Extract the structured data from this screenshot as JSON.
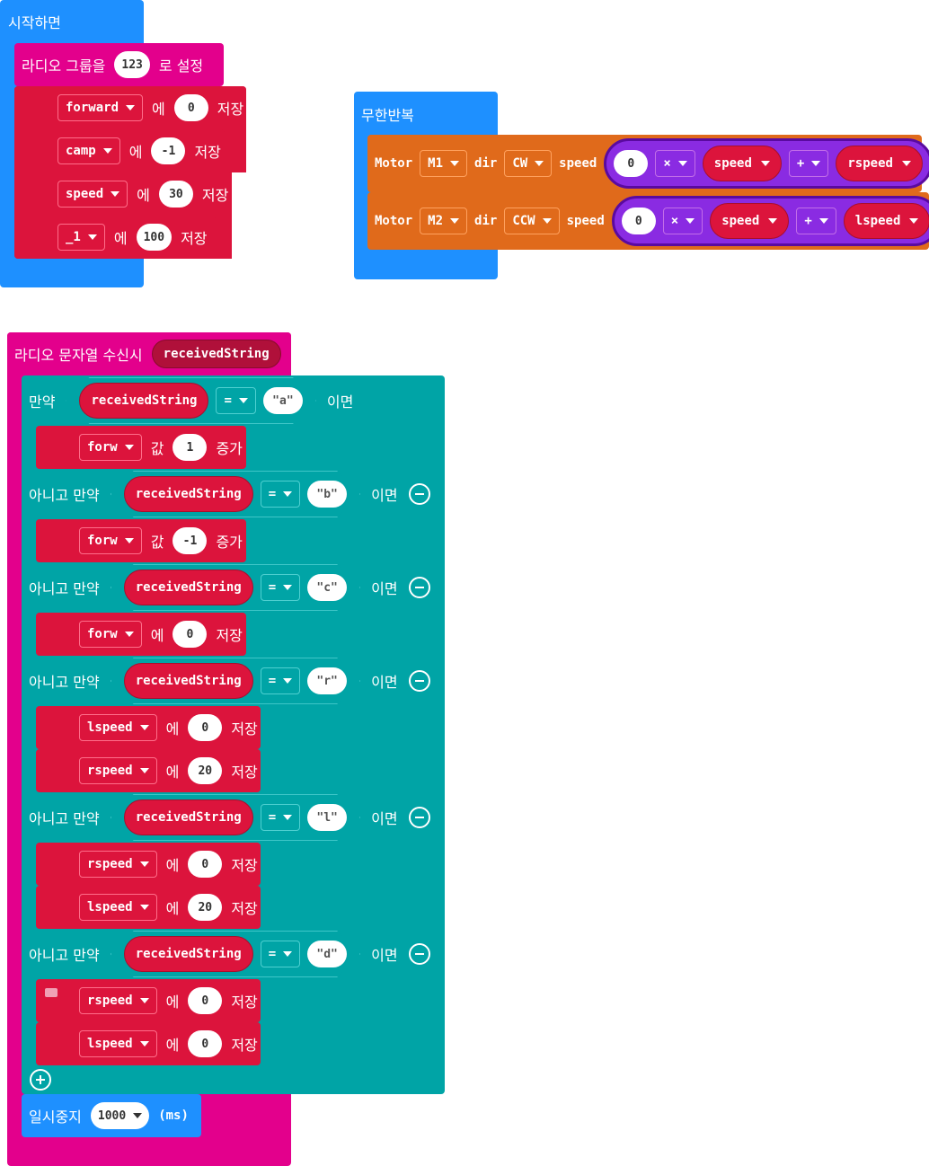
{
  "on_start": {
    "title": "시작하면",
    "radio": {
      "label": "라디오 그룹을",
      "value": "123",
      "suffix": "로 설정"
    },
    "sets": [
      {
        "var": "forward",
        "to": "에",
        "value": "0",
        "save": "저장"
      },
      {
        "var": "camp",
        "to": "에",
        "value": "-1",
        "save": "저장"
      },
      {
        "var": "speed",
        "to": "에",
        "value": "30",
        "save": "저장"
      },
      {
        "var": "_1",
        "to": "에",
        "value": "100",
        "save": "저장"
      }
    ]
  },
  "forever": {
    "title": "무한반복",
    "motors": [
      {
        "motor": "Motor",
        "id": "M1",
        "dir": "dir",
        "dir_value": "CW",
        "speed": "speed",
        "num": "0",
        "op1": "×",
        "var1": "speed",
        "op2": "+",
        "var2": "rspeed"
      },
      {
        "motor": "Motor",
        "id": "M2",
        "dir": "dir",
        "dir_value": "CCW",
        "speed": "speed",
        "num": "0",
        "op1": "×",
        "var1": "speed",
        "op2": "+",
        "var2": "lspeed"
      }
    ]
  },
  "on_radio": {
    "title": "라디오 문자열 수신시",
    "param": "receivedString",
    "if_label": "만약",
    "elif_label": "아니고 만약",
    "then_label": "이면",
    "cond_var": "receivedString",
    "cond_op": "=",
    "quote": "\"",
    "branches": [
      {
        "str": "a",
        "stmts": [
          {
            "var": "forw",
            "word": "값",
            "value": "1",
            "tail": "증가"
          }
        ]
      },
      {
        "str": "b",
        "stmts": [
          {
            "var": "forw",
            "word": "값",
            "value": "-1",
            "tail": "증가"
          }
        ]
      },
      {
        "str": "c",
        "stmts": [
          {
            "var": "forw",
            "word": "에",
            "value": "0",
            "tail": "저장"
          }
        ]
      },
      {
        "str": "r",
        "stmts": [
          {
            "var": "lspeed",
            "word": "에",
            "value": "0",
            "tail": "저장"
          },
          {
            "var": "rspeed",
            "word": "에",
            "value": "20",
            "tail": "저장"
          }
        ]
      },
      {
        "str": "l",
        "stmts": [
          {
            "var": "rspeed",
            "word": "에",
            "value": "0",
            "tail": "저장"
          },
          {
            "var": "lspeed",
            "word": "에",
            "value": "20",
            "tail": "저장"
          }
        ]
      },
      {
        "str": "d",
        "stmts": [
          {
            "var": "rspeed",
            "word": "에",
            "value": "0",
            "tail": "저장"
          },
          {
            "var": "lspeed",
            "word": "에",
            "value": "0",
            "tail": "저장"
          }
        ]
      }
    ],
    "pause": {
      "label": "일시중지",
      "value": "1000",
      "unit": "(ms)"
    }
  },
  "colors": {
    "blue": "#1e90ff",
    "magenta": "#e3008c",
    "red": "#dc143c",
    "teal": "#00a4a6",
    "orange": "#e06a1b",
    "purple": "#8a2be2"
  },
  "icons": [
    "caret-down-icon",
    "minus-circle-icon",
    "plus-circle-icon",
    "comment-icon"
  ]
}
